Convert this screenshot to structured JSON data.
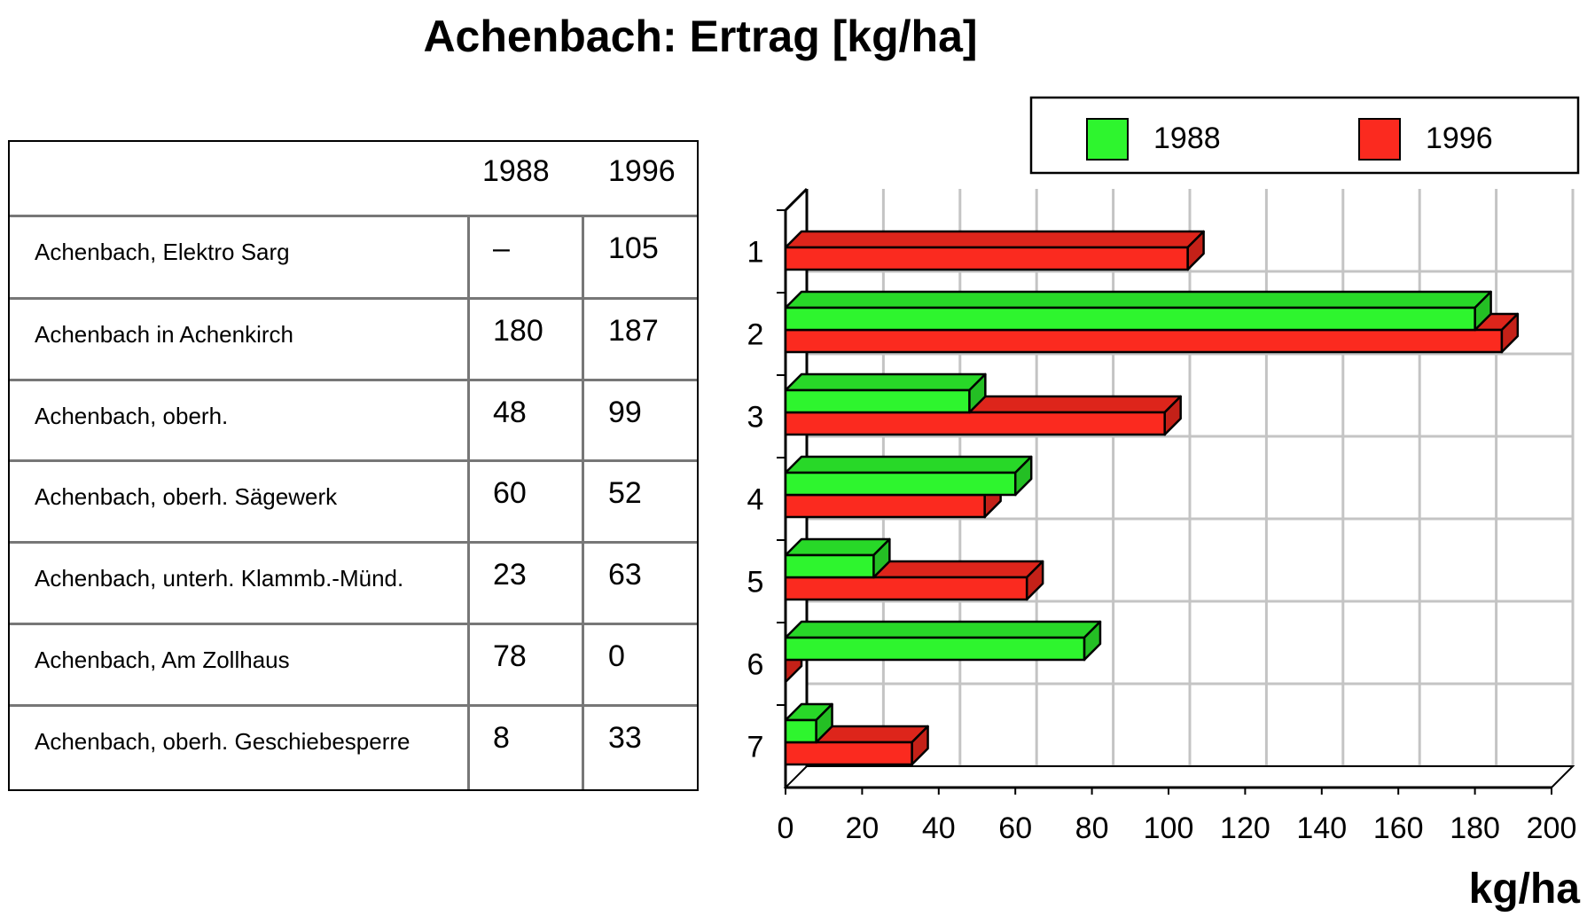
{
  "title": "Achenbach: Ertrag [kg/ha]",
  "table": {
    "headers": [
      "1988",
      "1996"
    ],
    "rows": [
      {
        "label": "Achenbach, Elektro Sarg",
        "v1988": "–",
        "v1996": "105"
      },
      {
        "label": "Achenbach in Achenkirch",
        "v1988": "180",
        "v1996": "187"
      },
      {
        "label": "Achenbach, oberh.",
        "v1988": "48",
        "v1996": "99"
      },
      {
        "label": "Achenbach, oberh. Sägewerk",
        "v1988": "60",
        "v1996": "52"
      },
      {
        "label": "Achenbach, unterh. Klammb.-Münd.",
        "v1988": "23",
        "v1996": "63"
      },
      {
        "label": "Achenbach, Am Zollhaus",
        "v1988": "78",
        "v1996": "0"
      },
      {
        "label": "Achenbach, oberh. Geschiebesperre",
        "v1988": "8",
        "v1996": "33"
      }
    ]
  },
  "chart_data": {
    "type": "bar",
    "orientation": "horizontal",
    "style": "3d",
    "title": "Achenbach: Ertrag [kg/ha]",
    "xlabel": "kg/ha",
    "ylabel": "",
    "categories": [
      "1",
      "2",
      "3",
      "4",
      "5",
      "6",
      "7"
    ],
    "series": [
      {
        "name": "1988",
        "color": "#2ef52e",
        "values": [
          null,
          180,
          48,
          60,
          23,
          78,
          8
        ]
      },
      {
        "name": "1996",
        "color": "#fb2a1f",
        "values": [
          105,
          187,
          99,
          52,
          63,
          0,
          33
        ]
      }
    ],
    "xlim": [
      0,
      200
    ],
    "xticks": [
      0,
      20,
      40,
      60,
      80,
      100,
      120,
      140,
      160,
      180,
      200
    ],
    "grid": true,
    "legend_position": "top-right"
  }
}
